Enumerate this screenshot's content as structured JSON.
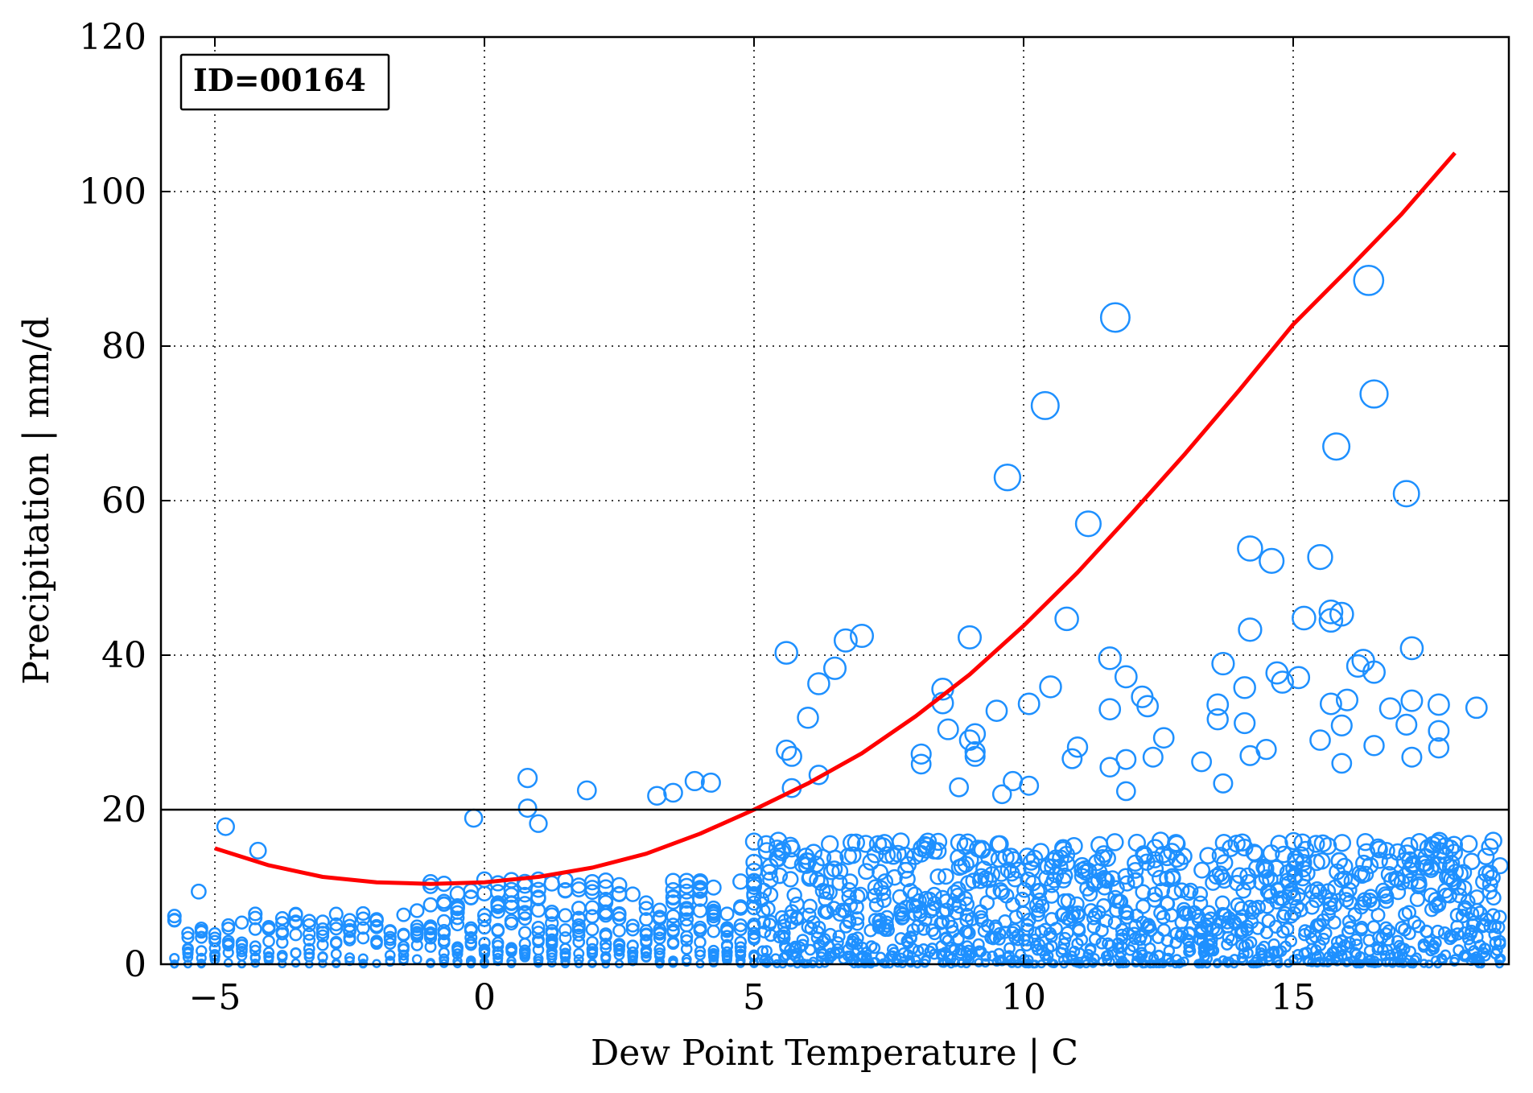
{
  "chart_data": {
    "type": "scatter",
    "xlabel": "Dew Point Temperature | C",
    "ylabel": "Precipitation | mm/d",
    "xlim": [
      -6,
      19
    ],
    "ylim": [
      0,
      120
    ],
    "xticks": [
      -5,
      0,
      5,
      10,
      15
    ],
    "yticks": [
      0,
      20,
      40,
      60,
      80,
      100,
      120
    ],
    "xtick_labels": [
      "−5",
      "0",
      "5",
      "10",
      "15"
    ],
    "ytick_labels": [
      "0",
      "20",
      "40",
      "60",
      "80",
      "100",
      "120"
    ],
    "grid": "dotted",
    "annotation": "ID=00164",
    "annotation_position": "top-left",
    "threshold_line": 20,
    "colors": {
      "points": "#1e90ff",
      "fit": "#ff0000",
      "threshold": "#000000"
    },
    "fit_curve": {
      "color": "#ff0000",
      "x": [
        -5,
        -4,
        -3,
        -2,
        -1,
        0,
        1,
        2,
        3,
        4,
        5,
        6,
        7,
        8,
        9,
        10,
        11,
        12,
        13,
        14,
        15,
        16,
        17,
        18
      ],
      "y": [
        15,
        12.8,
        11.3,
        10.6,
        10.4,
        10.6,
        11.3,
        12.5,
        14.3,
        16.9,
        20.0,
        23.4,
        27.3,
        32.1,
        37.5,
        43.8,
        50.7,
        58.3,
        66.1,
        74.3,
        82.8,
        89.8,
        97.0,
        105.0
      ]
    },
    "notable_points": [
      {
        "x": 16.4,
        "y": 88.5
      },
      {
        "x": 11.7,
        "y": 83.7
      },
      {
        "x": 16.5,
        "y": 73.8
      },
      {
        "x": 10.4,
        "y": 72.3
      },
      {
        "x": 15.8,
        "y": 67.0
      },
      {
        "x": 9.7,
        "y": 63.0
      },
      {
        "x": 17.1,
        "y": 60.9
      },
      {
        "x": 11.2,
        "y": 57.0
      },
      {
        "x": 14.2,
        "y": 53.8
      },
      {
        "x": 15.5,
        "y": 52.7
      },
      {
        "x": 14.6,
        "y": 52.2
      },
      {
        "x": 15.7,
        "y": 45.6
      },
      {
        "x": 15.9,
        "y": 45.3
      },
      {
        "x": 15.2,
        "y": 44.8
      },
      {
        "x": 10.8,
        "y": 44.7
      },
      {
        "x": 15.7,
        "y": 44.5
      },
      {
        "x": 14.2,
        "y": 43.3
      },
      {
        "x": 7.0,
        "y": 42.5
      },
      {
        "x": 9.0,
        "y": 42.3
      },
      {
        "x": 6.7,
        "y": 41.9
      },
      {
        "x": 17.2,
        "y": 40.9
      },
      {
        "x": 5.6,
        "y": 40.3
      },
      {
        "x": 11.6,
        "y": 39.6
      },
      {
        "x": 16.3,
        "y": 39.3
      },
      {
        "x": 13.7,
        "y": 38.9
      },
      {
        "x": 16.2,
        "y": 38.6
      },
      {
        "x": 6.5,
        "y": 38.3
      },
      {
        "x": 16.5,
        "y": 37.8
      },
      {
        "x": 14.7,
        "y": 37.7
      },
      {
        "x": 11.9,
        "y": 37.2
      },
      {
        "x": 15.1,
        "y": 37.1
      },
      {
        "x": 14.8,
        "y": 36.5
      },
      {
        "x": 6.2,
        "y": 36.3
      },
      {
        "x": 10.5,
        "y": 35.9
      },
      {
        "x": 14.1,
        "y": 35.8
      },
      {
        "x": 8.5,
        "y": 35.6
      },
      {
        "x": 12.2,
        "y": 34.6
      },
      {
        "x": 16.0,
        "y": 34.2
      },
      {
        "x": 17.2,
        "y": 34.1
      },
      {
        "x": 10.1,
        "y": 33.7
      },
      {
        "x": 8.5,
        "y": 33.8
      },
      {
        "x": 17.7,
        "y": 33.6
      },
      {
        "x": 13.6,
        "y": 33.6
      },
      {
        "x": 15.7,
        "y": 33.7
      },
      {
        "x": 12.3,
        "y": 33.4
      },
      {
        "x": 18.4,
        "y": 33.2
      },
      {
        "x": 16.8,
        "y": 33.1
      },
      {
        "x": 11.6,
        "y": 33.0
      },
      {
        "x": 9.5,
        "y": 32.8
      },
      {
        "x": 6.0,
        "y": 31.9
      },
      {
        "x": 13.6,
        "y": 31.7
      },
      {
        "x": 17.1,
        "y": 31.0
      },
      {
        "x": 15.9,
        "y": 30.9
      },
      {
        "x": 14.1,
        "y": 31.2
      },
      {
        "x": 8.6,
        "y": 30.4
      },
      {
        "x": 17.7,
        "y": 30.2
      },
      {
        "x": 9.1,
        "y": 29.8
      },
      {
        "x": 15.5,
        "y": 29.0
      },
      {
        "x": 12.6,
        "y": 29.3
      },
      {
        "x": 9.0,
        "y": 29.0
      },
      {
        "x": 17.7,
        "y": 28.0
      },
      {
        "x": 5.6,
        "y": 27.7
      },
      {
        "x": 14.5,
        "y": 27.8
      },
      {
        "x": 11.0,
        "y": 28.1
      },
      {
        "x": 16.5,
        "y": 28.3
      },
      {
        "x": 9.1,
        "y": 27.5
      },
      {
        "x": 8.1,
        "y": 27.2
      },
      {
        "x": 9.1,
        "y": 26.9
      },
      {
        "x": 5.7,
        "y": 26.9
      },
      {
        "x": 14.2,
        "y": 27.0
      },
      {
        "x": 17.2,
        "y": 26.8
      },
      {
        "x": 12.4,
        "y": 26.8
      },
      {
        "x": 10.9,
        "y": 26.6
      },
      {
        "x": 11.9,
        "y": 26.5
      },
      {
        "x": 15.9,
        "y": 26.0
      },
      {
        "x": 8.1,
        "y": 25.9
      },
      {
        "x": 11.6,
        "y": 25.5
      },
      {
        "x": 13.3,
        "y": 26.2
      },
      {
        "x": 6.2,
        "y": 24.5
      },
      {
        "x": 0.8,
        "y": 24.1
      },
      {
        "x": 3.9,
        "y": 23.7
      },
      {
        "x": 4.2,
        "y": 23.5
      },
      {
        "x": 9.8,
        "y": 23.7
      },
      {
        "x": 13.7,
        "y": 23.4
      },
      {
        "x": 10.1,
        "y": 23.1
      },
      {
        "x": 8.8,
        "y": 22.9
      },
      {
        "x": 3.5,
        "y": 22.2
      },
      {
        "x": 1.9,
        "y": 22.5
      },
      {
        "x": 11.9,
        "y": 22.4
      },
      {
        "x": 5.7,
        "y": 22.8
      },
      {
        "x": 3.2,
        "y": 21.8
      },
      {
        "x": 9.6,
        "y": 22.0
      },
      {
        "x": 0.8,
        "y": 20.2
      },
      {
        "x": -4.8,
        "y": 17.8
      },
      {
        "x": -0.2,
        "y": 18.9
      },
      {
        "x": 1.0,
        "y": 18.2
      },
      {
        "x": -4.2,
        "y": 14.7
      },
      {
        "x": -5.3,
        "y": 9.4
      }
    ],
    "bulk_region": {
      "description_note": "",
      "x_range": [
        -6,
        19
      ],
      "y_range": [
        0,
        20
      ]
    }
  }
}
